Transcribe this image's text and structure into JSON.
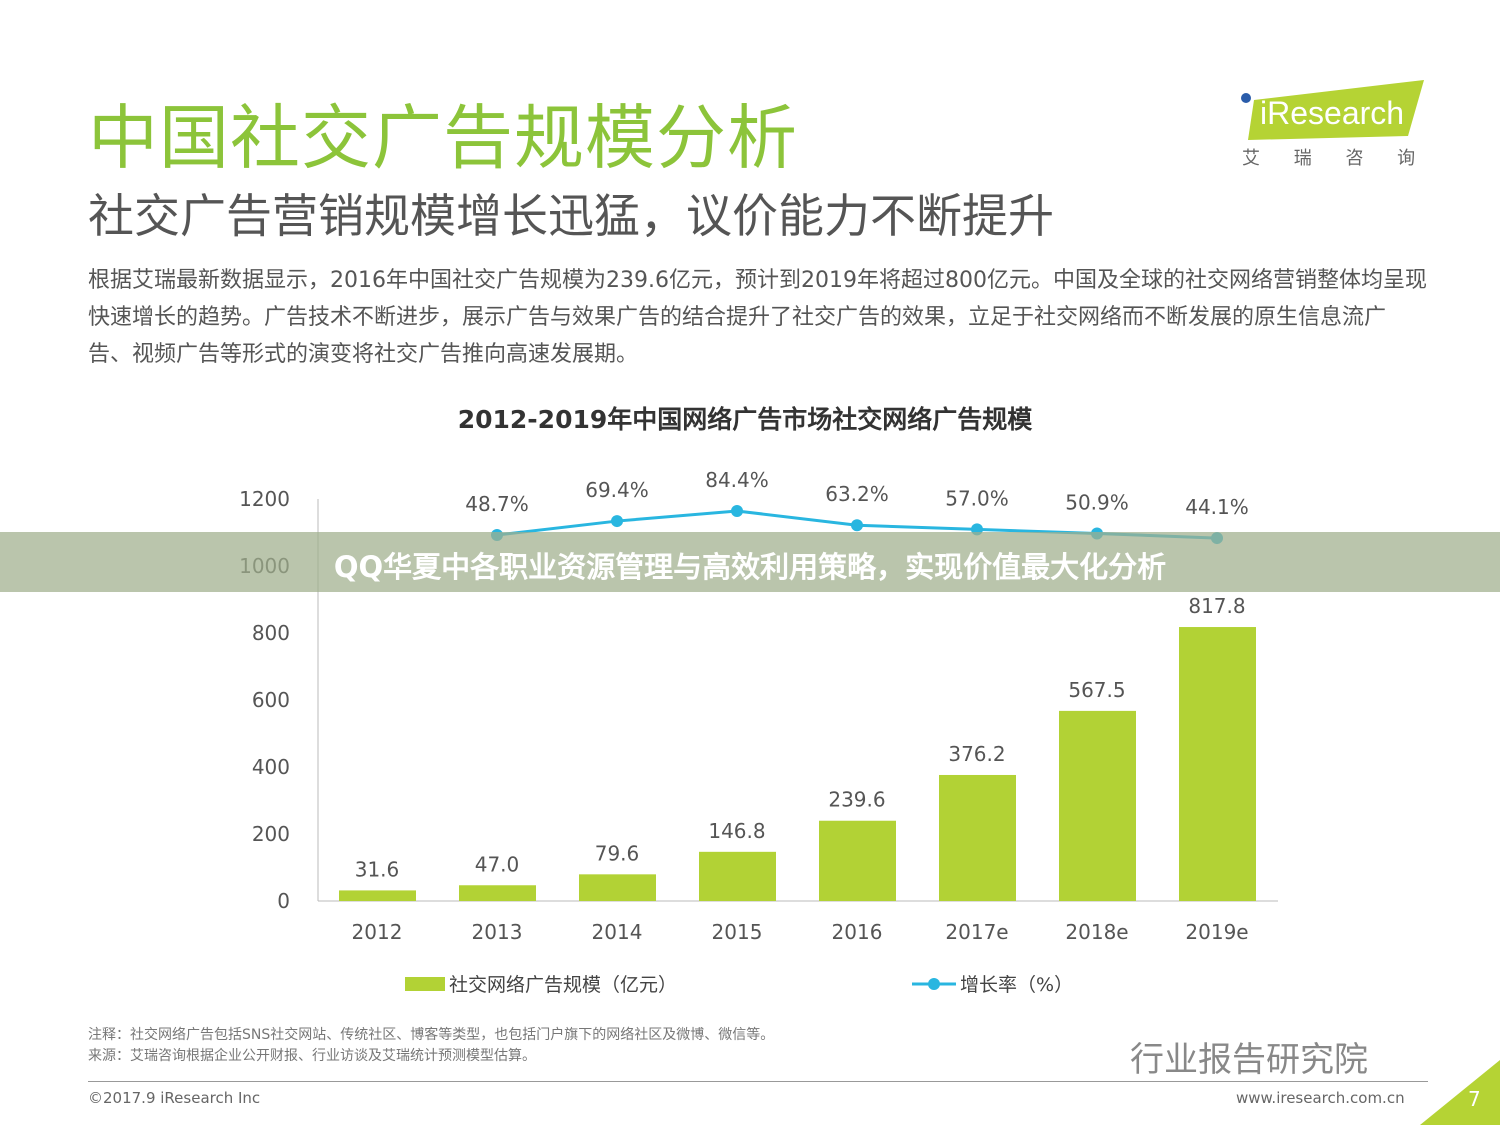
{
  "header": {
    "title": "中国社交广告规模分析",
    "subtitle": "社交广告营销规模增长迅猛，议价能力不断提升",
    "description": "根据艾瑞最新数据显示，2016年中国社交广告规模为239.6亿元，预计到2019年将超过800亿元。中国及全球的社交网络营销整体均呈现快速增长的趋势。广告技术不断进步，展示广告与效果广告的结合提升了社交广告的效果，立足于社交网络而不断发展的原生信息流广告、视频广告等形式的演变将社交广告推向高速发展期。"
  },
  "logo": {
    "text": "iResearch",
    "subtext": "艾 瑞 咨 询"
  },
  "chart_data": {
    "type": "bar+line",
    "title": "2012-2019年中国网络广告市场社交网络广告规模",
    "categories": [
      "2012",
      "2013",
      "2014",
      "2015",
      "2016",
      "2017e",
      "2018e",
      "2019e"
    ],
    "y_ticks": [
      "0",
      "200",
      "400",
      "600",
      "800",
      "1000",
      "1200"
    ],
    "ylim": [
      0,
      1200
    ],
    "series": [
      {
        "name": "社交网络广告规模（亿元）",
        "type": "bar",
        "color": "#b2d235",
        "values": [
          31.6,
          47.0,
          79.6,
          146.8,
          239.6,
          376.2,
          567.5,
          817.8
        ],
        "labels": [
          "31.6",
          "47.0",
          "79.6",
          "146.8",
          "239.6",
          "376.2",
          "567.5",
          "817.8"
        ]
      },
      {
        "name": "增长率（%）",
        "type": "line",
        "color": "#29b6e0",
        "x": [
          "2013",
          "2014",
          "2015",
          "2016",
          "2017e",
          "2018e",
          "2019e"
        ],
        "values": [
          48.7,
          69.4,
          84.4,
          63.2,
          57.0,
          50.9,
          44.1
        ],
        "labels": [
          "48.7%",
          "69.4%",
          "84.4%",
          "63.2%",
          "57.0%",
          "50.9%",
          "44.1%"
        ]
      }
    ],
    "legend_position": "bottom",
    "grid": false
  },
  "footer": {
    "note": "注释：社交网络广告包括SNS社交网站、传统社区、博客等类型，也包括门户旗下的网络社区及微博、微信等。",
    "source": "来源：艾瑞咨询根据企业公开财报、行业访谈及艾瑞统计预测模型估算。",
    "copyright": "©2017.9 iResearch Inc",
    "website": "www.iresearch.com.cn",
    "page": "7",
    "watermark": "行业报告研究院"
  },
  "banner": {
    "text": "QQ华夏中各职业资源管理与高效利用策略，实现价值最大化分析"
  }
}
